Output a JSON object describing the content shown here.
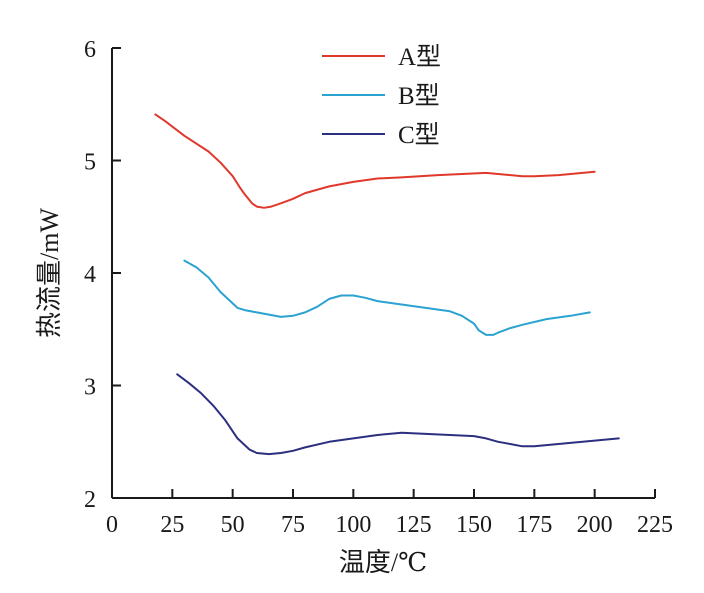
{
  "chart_data": {
    "type": "line",
    "xlabel": "温度/℃",
    "ylabel": "热流量/mW",
    "xlim": [
      0,
      225
    ],
    "ylim": [
      2,
      6
    ],
    "x_ticks": [
      0,
      25,
      50,
      75,
      100,
      125,
      150,
      175,
      200,
      225
    ],
    "y_ticks": [
      2,
      3,
      4,
      5,
      6
    ],
    "grid": false,
    "legend_position": "top-center",
    "series": [
      {
        "name": "A型",
        "color": "#e0382b",
        "x": [
          18,
          22,
          30,
          40,
          45,
          50,
          53,
          55,
          58,
          60,
          63,
          66,
          70,
          75,
          80,
          90,
          100,
          110,
          120,
          135,
          145,
          155,
          160,
          170,
          175,
          185,
          195,
          200
        ],
        "y": [
          5.41,
          5.35,
          5.22,
          5.08,
          4.98,
          4.86,
          4.76,
          4.7,
          4.62,
          4.59,
          4.58,
          4.59,
          4.62,
          4.66,
          4.71,
          4.77,
          4.81,
          4.84,
          4.85,
          4.87,
          4.88,
          4.89,
          4.88,
          4.86,
          4.86,
          4.87,
          4.89,
          4.9
        ]
      },
      {
        "name": "B型",
        "color": "#2aa3d0",
        "x": [
          30,
          35,
          40,
          45,
          50,
          52,
          55,
          60,
          65,
          70,
          75,
          80,
          85,
          90,
          95,
          100,
          105,
          110,
          120,
          130,
          140,
          145,
          150,
          152,
          155,
          158,
          160,
          165,
          170,
          180,
          190,
          198
        ],
        "y": [
          4.11,
          4.05,
          3.96,
          3.83,
          3.73,
          3.69,
          3.67,
          3.65,
          3.63,
          3.61,
          3.62,
          3.65,
          3.7,
          3.77,
          3.8,
          3.8,
          3.78,
          3.75,
          3.72,
          3.69,
          3.66,
          3.62,
          3.55,
          3.49,
          3.45,
          3.45,
          3.47,
          3.51,
          3.54,
          3.59,
          3.62,
          3.65
        ]
      },
      {
        "name": "C型",
        "color": "#2c2f80",
        "x": [
          27,
          32,
          37,
          42,
          47,
          52,
          57,
          60,
          65,
          70,
          75,
          80,
          90,
          100,
          110,
          120,
          130,
          140,
          150,
          155,
          160,
          165,
          170,
          175,
          180,
          190,
          200,
          210
        ],
        "y": [
          3.1,
          3.02,
          2.93,
          2.82,
          2.69,
          2.53,
          2.43,
          2.4,
          2.39,
          2.4,
          2.42,
          2.45,
          2.5,
          2.53,
          2.56,
          2.58,
          2.57,
          2.56,
          2.55,
          2.53,
          2.5,
          2.48,
          2.46,
          2.46,
          2.47,
          2.49,
          2.51,
          2.53
        ]
      }
    ]
  }
}
